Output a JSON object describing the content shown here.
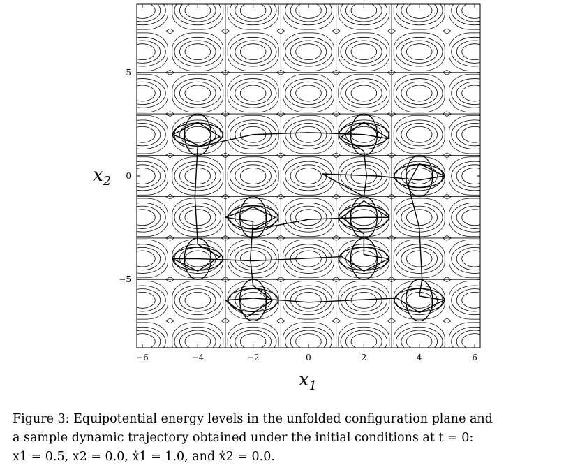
{
  "chart_data": {
    "type": "contour",
    "xlabel": "x",
    "xlabel_sub": "1",
    "ylabel": "x",
    "ylabel_sub": "2",
    "xlim": [
      -6.2,
      6.2
    ],
    "ylim": [
      -8.3,
      8.3
    ],
    "x_ticks": [
      -6,
      -4,
      -2,
      0,
      2,
      4,
      6
    ],
    "x_tick_labels": [
      "−6",
      "−4",
      "−2",
      "0",
      "2",
      "4",
      "6"
    ],
    "y_ticks": [
      -5,
      0,
      5
    ],
    "y_tick_labels": [
      "−5",
      "0",
      "5"
    ],
    "series": [
      {
        "kind": "equipotential-contours",
        "grid_lines_x": [
          -5,
          -3,
          -1,
          1,
          3,
          5
        ],
        "grid_lines_y": [
          -7,
          -5,
          -3,
          -1,
          1,
          3,
          5,
          7
        ]
      },
      {
        "kind": "trajectory",
        "initial_conditions": {
          "x1": 0.5,
          "x2": 0.0,
          "x1dot": 1.0,
          "x2dot": 0.0
        }
      }
    ]
  },
  "caption": {
    "line1": "Figure 3: Equipotential energy levels in the unfolded configuration plane and",
    "line2": "a sample dynamic trajectory obtained under the initial conditions at t = 0:",
    "line3": "x1 = 0.5, x2 = 0.0, ẋ1 = 1.0, and ẋ2 = 0.0."
  }
}
